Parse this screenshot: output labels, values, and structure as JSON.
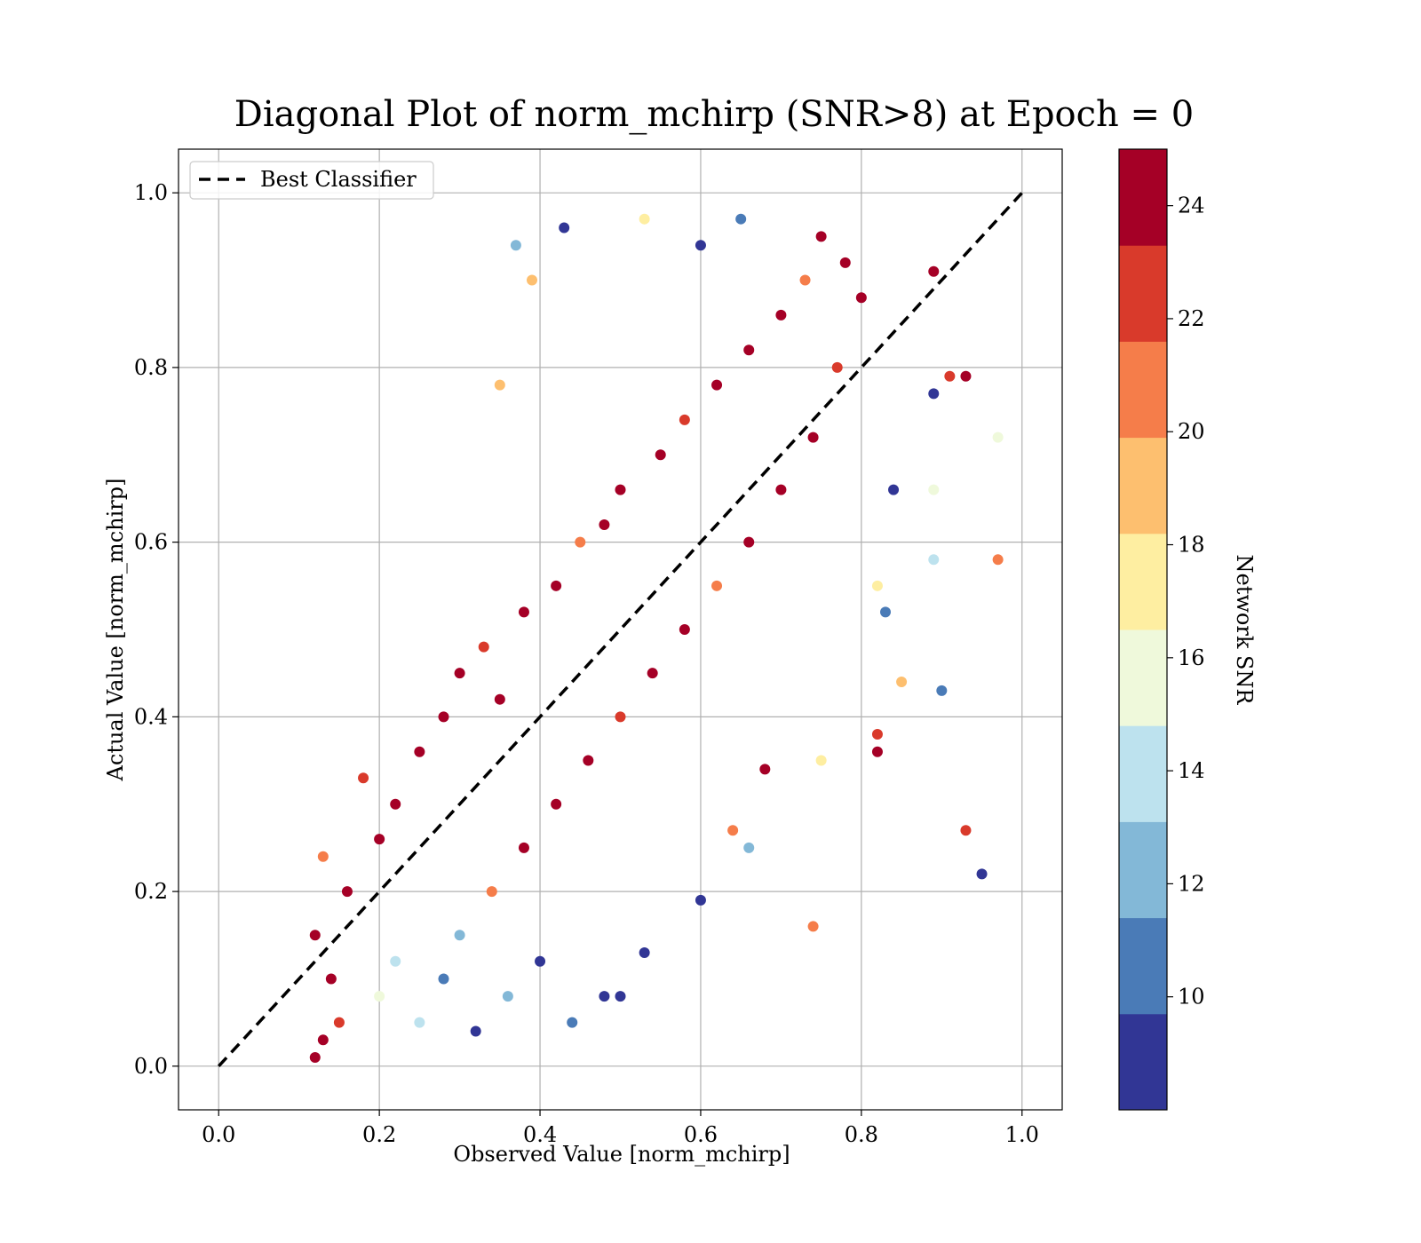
{
  "chart_data": {
    "type": "scatter",
    "title": "Diagonal Plot of norm_mchirp (SNR>8) at Epoch = 0",
    "xlabel": "Observed Value [norm_mchirp]",
    "ylabel": "Actual Value [norm_mchirp]",
    "xlim": [
      -0.05,
      1.05
    ],
    "ylim": [
      -0.05,
      1.05
    ],
    "x_ticks": [
      0.0,
      0.2,
      0.4,
      0.6,
      0.8,
      1.0
    ],
    "y_ticks": [
      0.0,
      0.2,
      0.4,
      0.6,
      0.8,
      1.0
    ],
    "x_tick_labels": [
      "0.0",
      "0.2",
      "0.4",
      "0.6",
      "0.8",
      "1.0"
    ],
    "y_tick_labels": [
      "0.0",
      "0.2",
      "0.4",
      "0.6",
      "0.8",
      "1.0"
    ],
    "grid": true,
    "legend": {
      "placement": "upper-left",
      "entries": [
        {
          "label": "Best Classifier",
          "style": "dashed",
          "color": "#000000"
        }
      ]
    },
    "reference_line": {
      "name": "Best Classifier",
      "x": [
        0.0,
        1.0
      ],
      "y": [
        0.0,
        1.0
      ]
    },
    "colorbar": {
      "label": "Network SNR",
      "range": [
        8,
        25
      ],
      "ticks": [
        10,
        12,
        14,
        16,
        18,
        20,
        22,
        24
      ],
      "tick_labels": [
        "10",
        "12",
        "14",
        "16",
        "18",
        "20",
        "22",
        "24"
      ],
      "bands": [
        {
          "from": 8.0,
          "to": 9.7,
          "color": "#313695"
        },
        {
          "from": 9.7,
          "to": 11.4,
          "color": "#4a7bb7"
        },
        {
          "from": 11.4,
          "to": 13.1,
          "color": "#83b8d7"
        },
        {
          "from": 13.1,
          "to": 14.8,
          "color": "#bde2ee"
        },
        {
          "from": 14.8,
          "to": 16.5,
          "color": "#eff9db"
        },
        {
          "from": 16.5,
          "to": 18.2,
          "color": "#feeea1"
        },
        {
          "from": 18.2,
          "to": 19.9,
          "color": "#fdbf6f"
        },
        {
          "from": 19.9,
          "to": 21.6,
          "color": "#f57d4a"
        },
        {
          "from": 21.6,
          "to": 23.3,
          "color": "#d93a2b"
        },
        {
          "from": 23.3,
          "to": 25.0,
          "color": "#a50026"
        }
      ]
    },
    "points": [
      {
        "x": 0.12,
        "y": 0.01,
        "snr": 24
      },
      {
        "x": 0.13,
        "y": 0.03,
        "snr": 24
      },
      {
        "x": 0.15,
        "y": 0.05,
        "snr": 22
      },
      {
        "x": 0.14,
        "y": 0.1,
        "snr": 24
      },
      {
        "x": 0.12,
        "y": 0.15,
        "snr": 24
      },
      {
        "x": 0.16,
        "y": 0.2,
        "snr": 24
      },
      {
        "x": 0.13,
        "y": 0.24,
        "snr": 20
      },
      {
        "x": 0.2,
        "y": 0.26,
        "snr": 24
      },
      {
        "x": 0.22,
        "y": 0.3,
        "snr": 24
      },
      {
        "x": 0.18,
        "y": 0.33,
        "snr": 22
      },
      {
        "x": 0.25,
        "y": 0.36,
        "snr": 24
      },
      {
        "x": 0.28,
        "y": 0.4,
        "snr": 24
      },
      {
        "x": 0.3,
        "y": 0.45,
        "snr": 24
      },
      {
        "x": 0.33,
        "y": 0.48,
        "snr": 22
      },
      {
        "x": 0.35,
        "y": 0.42,
        "snr": 24
      },
      {
        "x": 0.38,
        "y": 0.52,
        "snr": 24
      },
      {
        "x": 0.42,
        "y": 0.55,
        "snr": 24
      },
      {
        "x": 0.45,
        "y": 0.6,
        "snr": 20
      },
      {
        "x": 0.48,
        "y": 0.62,
        "snr": 24
      },
      {
        "x": 0.5,
        "y": 0.66,
        "snr": 24
      },
      {
        "x": 0.55,
        "y": 0.7,
        "snr": 24
      },
      {
        "x": 0.58,
        "y": 0.74,
        "snr": 22
      },
      {
        "x": 0.62,
        "y": 0.78,
        "snr": 24
      },
      {
        "x": 0.66,
        "y": 0.82,
        "snr": 24
      },
      {
        "x": 0.7,
        "y": 0.86,
        "snr": 24
      },
      {
        "x": 0.73,
        "y": 0.9,
        "snr": 20
      },
      {
        "x": 0.75,
        "y": 0.95,
        "snr": 24
      },
      {
        "x": 0.78,
        "y": 0.92,
        "snr": 24
      },
      {
        "x": 0.8,
        "y": 0.88,
        "snr": 24
      },
      {
        "x": 0.77,
        "y": 0.8,
        "snr": 22
      },
      {
        "x": 0.74,
        "y": 0.72,
        "snr": 24
      },
      {
        "x": 0.7,
        "y": 0.66,
        "snr": 24
      },
      {
        "x": 0.66,
        "y": 0.6,
        "snr": 24
      },
      {
        "x": 0.62,
        "y": 0.55,
        "snr": 20
      },
      {
        "x": 0.58,
        "y": 0.5,
        "snr": 24
      },
      {
        "x": 0.54,
        "y": 0.45,
        "snr": 24
      },
      {
        "x": 0.5,
        "y": 0.4,
        "snr": 22
      },
      {
        "x": 0.46,
        "y": 0.35,
        "snr": 24
      },
      {
        "x": 0.42,
        "y": 0.3,
        "snr": 24
      },
      {
        "x": 0.38,
        "y": 0.25,
        "snr": 24
      },
      {
        "x": 0.34,
        "y": 0.2,
        "snr": 20
      },
      {
        "x": 0.3,
        "y": 0.15,
        "snr": 12
      },
      {
        "x": 0.28,
        "y": 0.1,
        "snr": 10
      },
      {
        "x": 0.25,
        "y": 0.05,
        "snr": 14
      },
      {
        "x": 0.32,
        "y": 0.04,
        "snr": 9
      },
      {
        "x": 0.36,
        "y": 0.08,
        "snr": 12
      },
      {
        "x": 0.4,
        "y": 0.12,
        "snr": 9
      },
      {
        "x": 0.44,
        "y": 0.05,
        "snr": 10
      },
      {
        "x": 0.22,
        "y": 0.12,
        "snr": 14
      },
      {
        "x": 0.2,
        "y": 0.08,
        "snr": 16
      },
      {
        "x": 0.43,
        "y": 0.96,
        "snr": 9
      },
      {
        "x": 0.37,
        "y": 0.94,
        "snr": 13
      },
      {
        "x": 0.39,
        "y": 0.9,
        "snr": 19
      },
      {
        "x": 0.35,
        "y": 0.78,
        "snr": 19
      },
      {
        "x": 0.53,
        "y": 0.97,
        "snr": 17
      },
      {
        "x": 0.6,
        "y": 0.94,
        "snr": 9
      },
      {
        "x": 0.65,
        "y": 0.97,
        "snr": 10
      },
      {
        "x": 0.84,
        "y": 0.66,
        "snr": 9
      },
      {
        "x": 0.89,
        "y": 0.91,
        "snr": 24
      },
      {
        "x": 0.89,
        "y": 0.77,
        "snr": 9
      },
      {
        "x": 0.91,
        "y": 0.79,
        "snr": 22
      },
      {
        "x": 0.93,
        "y": 0.79,
        "snr": 24
      },
      {
        "x": 0.97,
        "y": 0.72,
        "snr": 16
      },
      {
        "x": 0.89,
        "y": 0.66,
        "snr": 16
      },
      {
        "x": 0.97,
        "y": 0.58,
        "snr": 20
      },
      {
        "x": 0.89,
        "y": 0.58,
        "snr": 14
      },
      {
        "x": 0.83,
        "y": 0.52,
        "snr": 10
      },
      {
        "x": 0.82,
        "y": 0.55,
        "snr": 17
      },
      {
        "x": 0.85,
        "y": 0.44,
        "snr": 19
      },
      {
        "x": 0.9,
        "y": 0.43,
        "snr": 10
      },
      {
        "x": 0.82,
        "y": 0.38,
        "snr": 22
      },
      {
        "x": 0.82,
        "y": 0.36,
        "snr": 24
      },
      {
        "x": 0.93,
        "y": 0.27,
        "snr": 22
      },
      {
        "x": 0.95,
        "y": 0.22,
        "snr": 9
      },
      {
        "x": 0.74,
        "y": 0.16,
        "snr": 21
      },
      {
        "x": 0.6,
        "y": 0.19,
        "snr": 9
      },
      {
        "x": 0.53,
        "y": 0.13,
        "snr": 9
      },
      {
        "x": 0.5,
        "y": 0.08,
        "snr": 9
      },
      {
        "x": 0.48,
        "y": 0.08,
        "snr": 9
      },
      {
        "x": 0.66,
        "y": 0.25,
        "snr": 12
      },
      {
        "x": 0.68,
        "y": 0.34,
        "snr": 24
      },
      {
        "x": 0.75,
        "y": 0.35,
        "snr": 17
      },
      {
        "x": 0.64,
        "y": 0.27,
        "snr": 20
      }
    ]
  }
}
